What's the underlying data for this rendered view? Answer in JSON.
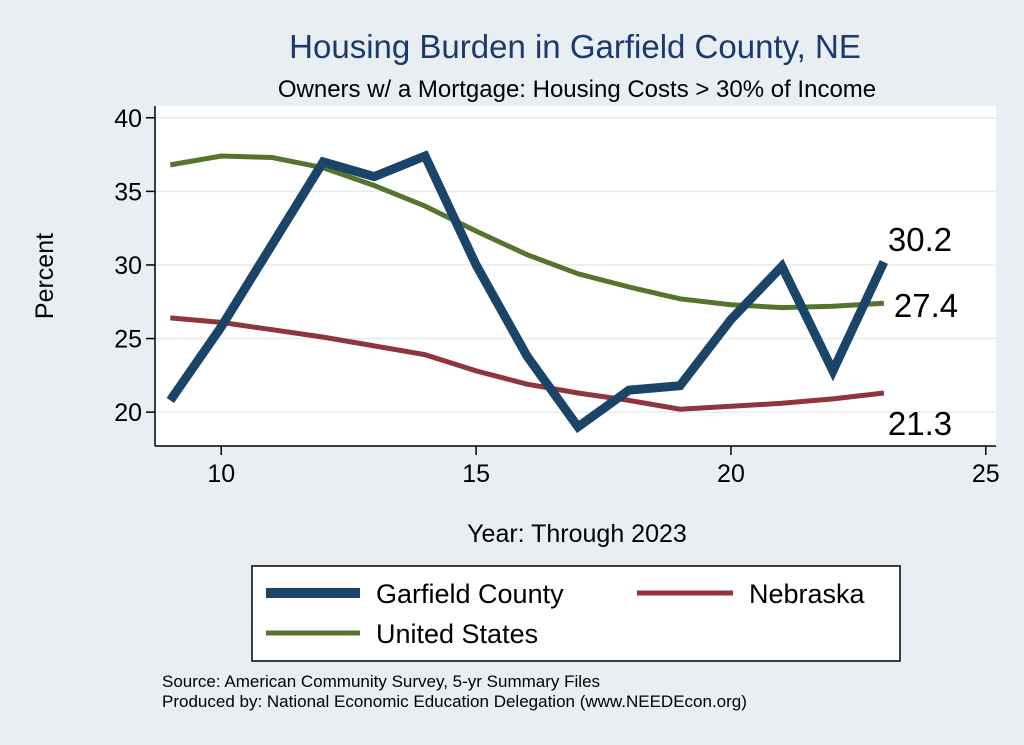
{
  "chart_data": {
    "type": "line",
    "title": "Housing Burden in Garfield County, NE",
    "subtitle": "Owners w/ a Mortgage: Housing Costs > 30% of Income",
    "xlabel": "Year: Through 2023",
    "ylabel": "Percent",
    "xlim": [
      8.7,
      25.2
    ],
    "ylim": [
      17.7,
      40.8
    ],
    "xticks": [
      10,
      15,
      20,
      25
    ],
    "yticks": [
      20,
      25,
      30,
      35,
      40
    ],
    "grid": true,
    "legend_position": "bottom",
    "series": [
      {
        "name": "Garfield County",
        "color": "#1b4469",
        "x": [
          9,
          10,
          11,
          12,
          13,
          14,
          15,
          16,
          17,
          18,
          19,
          20,
          21,
          22,
          23
        ],
        "values": [
          20.8,
          25.8,
          31.4,
          37.0,
          36.0,
          37.4,
          30.0,
          23.8,
          19.0,
          21.5,
          21.8,
          26.3,
          29.9,
          22.8,
          30.2
        ],
        "end_label": "30.2"
      },
      {
        "name": "Nebraska",
        "color": "#90353b",
        "x": [
          9,
          10,
          11,
          12,
          13,
          14,
          15,
          16,
          17,
          18,
          19,
          20,
          21,
          22,
          23
        ],
        "values": [
          26.4,
          26.1,
          25.6,
          25.1,
          24.5,
          23.9,
          22.8,
          21.9,
          21.3,
          20.8,
          20.2,
          20.4,
          20.6,
          20.9,
          21.3
        ],
        "end_label": "21.3"
      },
      {
        "name": "United States",
        "color": "#55752f",
        "x": [
          9,
          10,
          11,
          12,
          13,
          14,
          15,
          16,
          17,
          18,
          19,
          20,
          21,
          22,
          23
        ],
        "values": [
          36.8,
          37.4,
          37.3,
          36.6,
          35.4,
          34.0,
          32.3,
          30.7,
          29.4,
          28.5,
          27.7,
          27.3,
          27.1,
          27.2,
          27.4
        ],
        "end_label": "27.4"
      }
    ]
  },
  "legend": {
    "items": [
      {
        "label": "Garfield County"
      },
      {
        "label": "Nebraska"
      },
      {
        "label": "United States"
      }
    ]
  },
  "notes": {
    "source": "Source: American Community Survey, 5-yr Summary Files",
    "produced": "Produced by: National Economic Education Delegation (www.NEEDEcon.org)"
  },
  "colors": {
    "background": "#e9eef3",
    "plot_background": "#ffffff",
    "title": "#1b3a6b",
    "grid": "#e6eaee"
  }
}
